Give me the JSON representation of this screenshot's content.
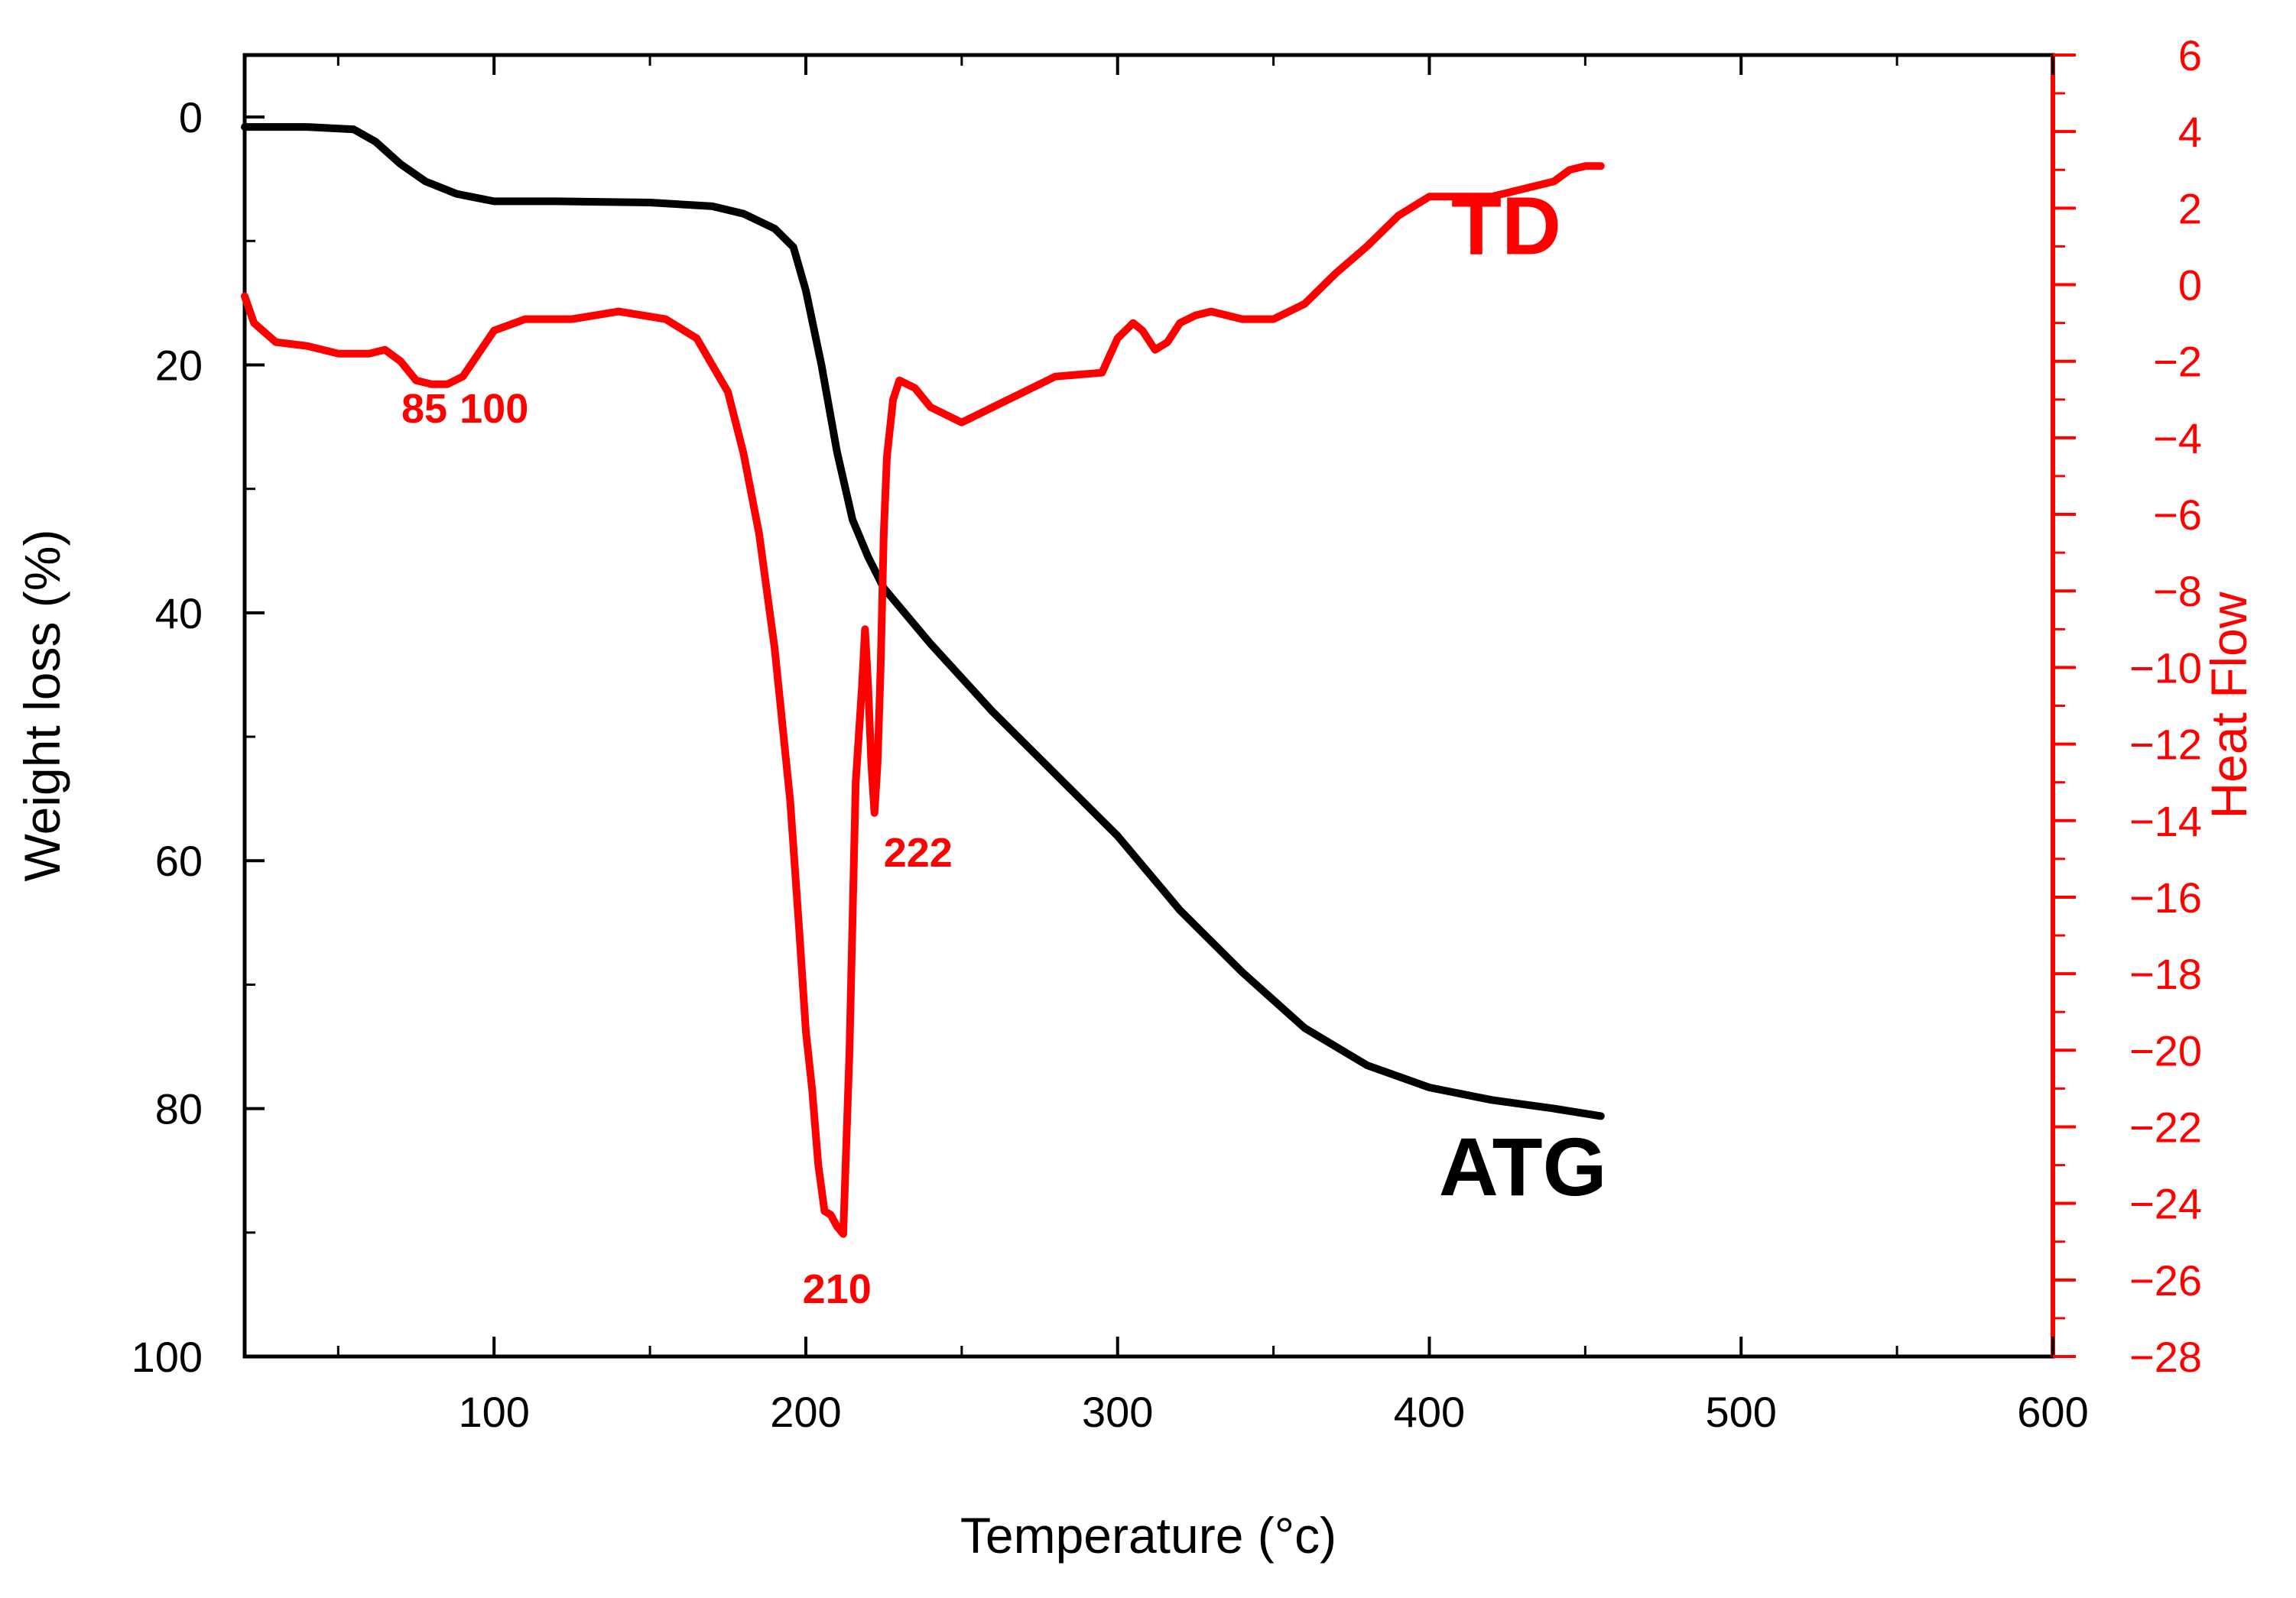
{
  "chart_data": {
    "type": "line",
    "title": "",
    "xlabel": "Temperature (°c)",
    "ylabel_left": "Weight loss (%)",
    "ylabel_right": "Heat Flow",
    "xlim": [
      20,
      600
    ],
    "ylim_left": [
      100,
      -5
    ],
    "ylim_right": [
      -28,
      6
    ],
    "x_ticks": [
      100,
      200,
      300,
      400,
      500,
      600
    ],
    "x_tick_labels": [
      "100",
      "200",
      "300",
      "400",
      "500",
      "600"
    ],
    "y_left_ticks": [
      0,
      20,
      40,
      60,
      80,
      100
    ],
    "y_left_tick_labels": [
      "0",
      "20",
      "40",
      "60",
      "80",
      "100"
    ],
    "y_right_ticks": [
      6,
      4,
      2,
      0,
      -2,
      -4,
      -6,
      -8,
      -10,
      -12,
      -14,
      -16,
      -18,
      -20,
      -22,
      -24,
      -26,
      -28
    ],
    "y_right_tick_labels": [
      "6",
      "4",
      "2",
      "0",
      "−2",
      "−4",
      "−6",
      "−8",
      "−10",
      "−12",
      "−14",
      "−16",
      "−18",
      "−20",
      "−22",
      "−24",
      "−26",
      "−28"
    ],
    "colors": {
      "atg": "#000000",
      "td": "#ff0000",
      "right_axis": "#ff0000"
    },
    "series": [
      {
        "name": "ATG",
        "axis": "left",
        "label": "ATG",
        "x": [
          20,
          40,
          55,
          62,
          70,
          78,
          88,
          100,
          120,
          150,
          170,
          180,
          190,
          196,
          200,
          205,
          210,
          215,
          220,
          225,
          240,
          260,
          280,
          300,
          320,
          340,
          360,
          380,
          400,
          420,
          440,
          455
        ],
        "y": [
          0.8,
          0.8,
          1.0,
          2.0,
          3.8,
          5.2,
          6.2,
          6.8,
          6.8,
          6.9,
          7.2,
          7.8,
          9.0,
          10.5,
          14.0,
          20.0,
          27.0,
          32.5,
          35.5,
          38.0,
          42.5,
          48.0,
          53.0,
          58.0,
          64.0,
          69.0,
          73.5,
          76.5,
          78.3,
          79.3,
          80.0,
          80.6
        ]
      },
      {
        "name": "TD",
        "axis": "right",
        "label": "TD",
        "x": [
          20,
          23,
          30,
          40,
          50,
          60,
          65,
          70,
          75,
          80,
          85,
          90,
          95,
          100,
          110,
          125,
          140,
          155,
          165,
          175,
          180,
          185,
          190,
          195,
          198,
          200,
          202,
          204,
          206,
          208,
          210,
          212,
          214,
          216,
          218,
          219,
          220,
          221,
          222,
          223,
          224,
          225,
          226,
          228,
          230,
          235,
          240,
          250,
          260,
          280,
          295,
          300,
          305,
          308,
          312,
          316,
          320,
          325,
          330,
          340,
          350,
          360,
          370,
          380,
          390,
          400,
          420,
          440,
          445,
          450,
          455
        ],
        "y": [
          -0.3,
          -1.0,
          -1.5,
          -1.6,
          -1.8,
          -1.8,
          -1.7,
          -2.0,
          -2.5,
          -2.6,
          -2.6,
          -2.4,
          -1.8,
          -1.2,
          -0.9,
          -0.9,
          -0.7,
          -0.9,
          -1.4,
          -2.8,
          -4.4,
          -6.5,
          -9.5,
          -13.5,
          -17.0,
          -19.5,
          -21.0,
          -23.0,
          -24.2,
          -24.3,
          -24.6,
          -24.8,
          -20.0,
          -13.0,
          -10.5,
          -9.0,
          -10.5,
          -12.5,
          -13.8,
          -12.5,
          -10.0,
          -6.5,
          -4.5,
          -3.0,
          -2.5,
          -2.7,
          -3.2,
          -3.6,
          -3.2,
          -2.4,
          -2.3,
          -1.4,
          -1.0,
          -1.2,
          -1.7,
          -1.5,
          -1.0,
          -0.8,
          -0.7,
          -0.9,
          -0.9,
          -0.5,
          0.3,
          1.0,
          1.8,
          2.3,
          2.3,
          2.7,
          3.0,
          3.1,
          3.1
        ]
      }
    ],
    "annotations": [
      {
        "text": "85",
        "x": 85,
        "y": -3.6,
        "axis": "right",
        "anchor": "end"
      },
      {
        "text": "100",
        "x": 100,
        "y": -3.6,
        "axis": "right",
        "anchor": "middle"
      },
      {
        "text": "210",
        "x": 210,
        "y": -26.6,
        "axis": "right",
        "anchor": "middle"
      },
      {
        "text": "222",
        "x": 236,
        "y": -15.2,
        "axis": "right",
        "anchor": "middle"
      }
    ],
    "series_labels": [
      {
        "text": "TD",
        "x": 407,
        "y": 0.8,
        "axis": "right"
      },
      {
        "text": "ATG",
        "x": 403,
        "y": 87.0,
        "axis": "left"
      }
    ]
  }
}
